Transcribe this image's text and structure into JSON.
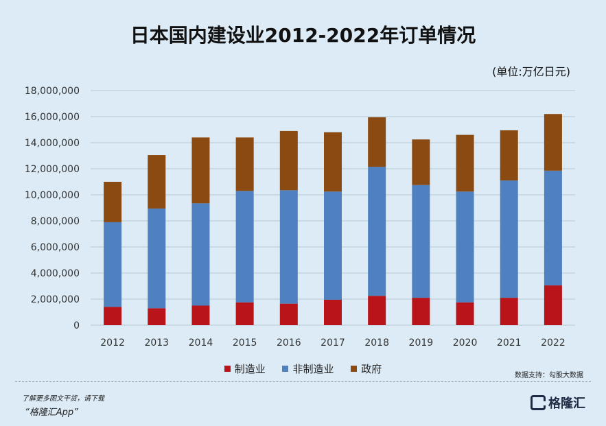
{
  "colors": {
    "manufacturing": "#b8141a",
    "non_manufacturing": "#4f80c0",
    "government": "#8a4a12",
    "grid": "#b9c8d3",
    "background": "#dcebf5"
  },
  "header": {
    "title": "日本国内建设业2012-2022年订单情况",
    "unit": "(单位:万亿日元)"
  },
  "source": "数据支持：勾股大数据",
  "footer": {
    "line1": "了解更多图文干货，请下载",
    "line2": "“格隆汇App”",
    "logo_icon": "glh-logo-icon",
    "logo_text": "格隆汇"
  },
  "chart_data": {
    "type": "bar",
    "stacked": true,
    "title": "日本国内建设业2012-2022年订单情况",
    "xlabel": "",
    "ylabel": "",
    "categories": [
      "2012",
      "2013",
      "2014",
      "2015",
      "2016",
      "2017",
      "2018",
      "2019",
      "2020",
      "2021",
      "2022"
    ],
    "ylim": [
      0,
      18000000
    ],
    "yticks": [
      0,
      2000000,
      4000000,
      6000000,
      8000000,
      10000000,
      12000000,
      14000000,
      16000000,
      18000000
    ],
    "ytick_labels": [
      "0",
      "2,000,000",
      "4,000,000",
      "6,000,000",
      "8,000,000",
      "10,000,000",
      "12,000,000",
      "14,000,000",
      "16,000,000",
      "18,000,000"
    ],
    "grid": true,
    "legend_position": "bottom",
    "series": [
      {
        "name": "制造业",
        "values": [
          1400000,
          1300000,
          1500000,
          1750000,
          1650000,
          1950000,
          2250000,
          2100000,
          1750000,
          2100000,
          3050000
        ]
      },
      {
        "name": "非制造业",
        "values": [
          6500000,
          7650000,
          7850000,
          8550000,
          8700000,
          8300000,
          9900000,
          8650000,
          8500000,
          9000000,
          8800000
        ]
      },
      {
        "name": "政府",
        "values": [
          3100000,
          4100000,
          5050000,
          4100000,
          4550000,
          4550000,
          3800000,
          3500000,
          4350000,
          3850000,
          4350000
        ]
      }
    ]
  }
}
